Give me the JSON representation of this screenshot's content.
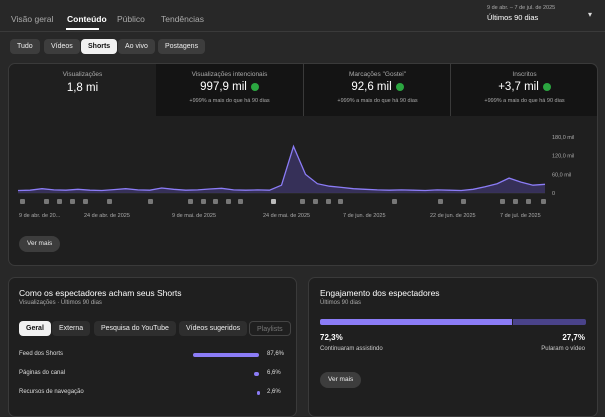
{
  "tabs": [
    "Visão geral",
    "Conteúdo",
    "Público",
    "Tendências"
  ],
  "date_range": {
    "dates": "9 de abr. – 7 de jul. de 2025",
    "label": "Últimos 90 dias"
  },
  "filters": [
    "Tudo",
    "Vídeos",
    "Shorts",
    "Ao vivo",
    "Postagens"
  ],
  "metrics": [
    {
      "title": "Visualizações",
      "value": "1,8 mi"
    },
    {
      "title": "Visualizações intencionais",
      "value": "997,9 mil",
      "change": "+999% a mais do que há 90 dias"
    },
    {
      "title": "Marcações \"Gostei\"",
      "value": "92,6 mil",
      "change": "+999% a mais do que há 90 dias"
    },
    {
      "title": "Inscritos",
      "value": "+3,7 mil",
      "change": "+999% a mais do que há 90 dias"
    }
  ],
  "chart": {
    "type": "line",
    "color": "#8b7cf6",
    "grid": false,
    "ylim": [
      0,
      190000
    ],
    "yticks": [
      {
        "value": 0,
        "label": "0"
      },
      {
        "value": 60000,
        "label": "60,0 mil"
      },
      {
        "value": 120000,
        "label": "120,0 mil"
      },
      {
        "value": 180000,
        "label": "180,0 mil"
      }
    ],
    "x_labels": [
      "9 de abr. de 20...",
      "24 de abr. de 2025",
      "9 de mai. de 2025",
      "24 de mai. de 2025",
      "7 de jun. de 2025",
      "22 de jun. de 2025",
      "7 de jul. de 2025"
    ],
    "values": [
      8000,
      9000,
      14000,
      10000,
      9000,
      12000,
      9000,
      8000,
      11000,
      14000,
      10000,
      9000,
      16000,
      12000,
      9000,
      10000,
      13000,
      15000,
      10000,
      9000,
      10000,
      9000,
      25000,
      150000,
      60000,
      30000,
      22000,
      18000,
      14000,
      12000,
      10000,
      9000,
      10000,
      9000,
      8000,
      10000,
      9000,
      8000,
      12000,
      20000,
      30000,
      48000,
      35000,
      25000,
      28000
    ]
  },
  "chart_button": "Ver mais",
  "sources": {
    "title": "Como os espectadores acham seus Shorts",
    "subtitle": "Visualizações · Últimos 90 dias",
    "filters": [
      "Geral",
      "Externa",
      "Pesquisa do YouTube",
      "Vídeos sugeridos",
      "Playlists"
    ],
    "rows": [
      {
        "label": "Feed dos Shorts",
        "value": 87.6,
        "value_label": "87,6%"
      },
      {
        "label": "Páginas do canal",
        "value": 6.6,
        "value_label": "6,6%"
      },
      {
        "label": "Recursos de navegação",
        "value": 2.6,
        "value_label": "2,6%"
      }
    ]
  },
  "engagement": {
    "title": "Engajamento dos espectadores",
    "subtitle": "Últimos 90 dias",
    "stayed": {
      "value": 72.3,
      "value_label": "72,3%",
      "label": "Continuaram assistindo"
    },
    "skipped": {
      "value": 27.7,
      "value_label": "27,7%",
      "label": "Pularam o vídeo"
    },
    "button": "Ver mais"
  }
}
